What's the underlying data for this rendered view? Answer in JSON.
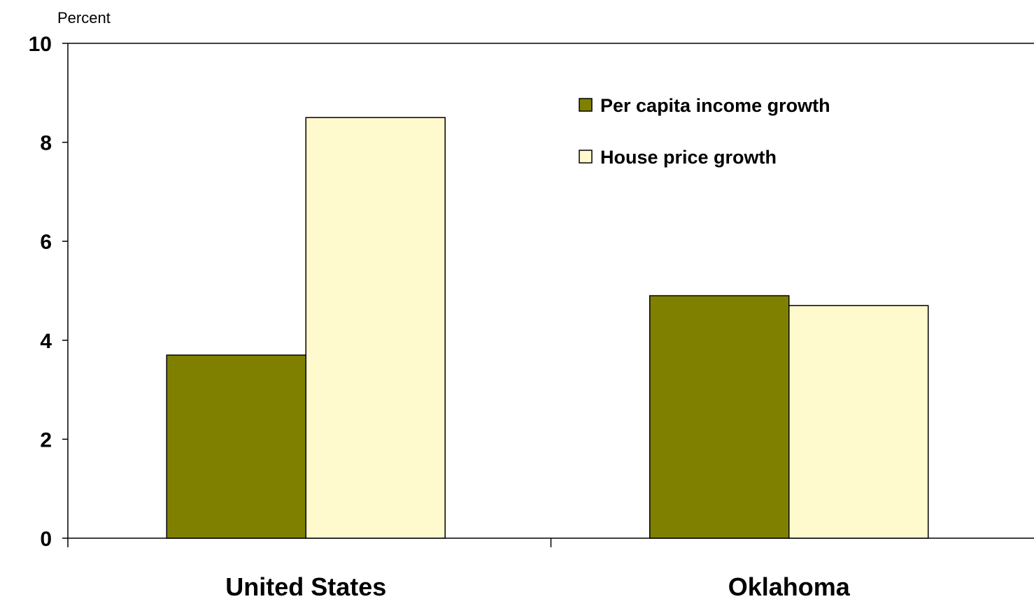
{
  "chart_data": {
    "type": "bar",
    "title": "",
    "xlabel": "",
    "ylabel": "Percent",
    "ylim": [
      0,
      10
    ],
    "yticks": [
      "0",
      "2",
      "4",
      "6",
      "8",
      "10"
    ],
    "categories": [
      "United States",
      "Oklahoma"
    ],
    "series": [
      {
        "name": "Per capita income growth",
        "values": [
          3.7,
          4.9
        ]
      },
      {
        "name": "House price growth",
        "values": [
          8.5,
          4.7
        ]
      }
    ],
    "colors": [
      "#808000",
      "#FFFACD"
    ],
    "legend_position": "top-right",
    "grid": false
  }
}
